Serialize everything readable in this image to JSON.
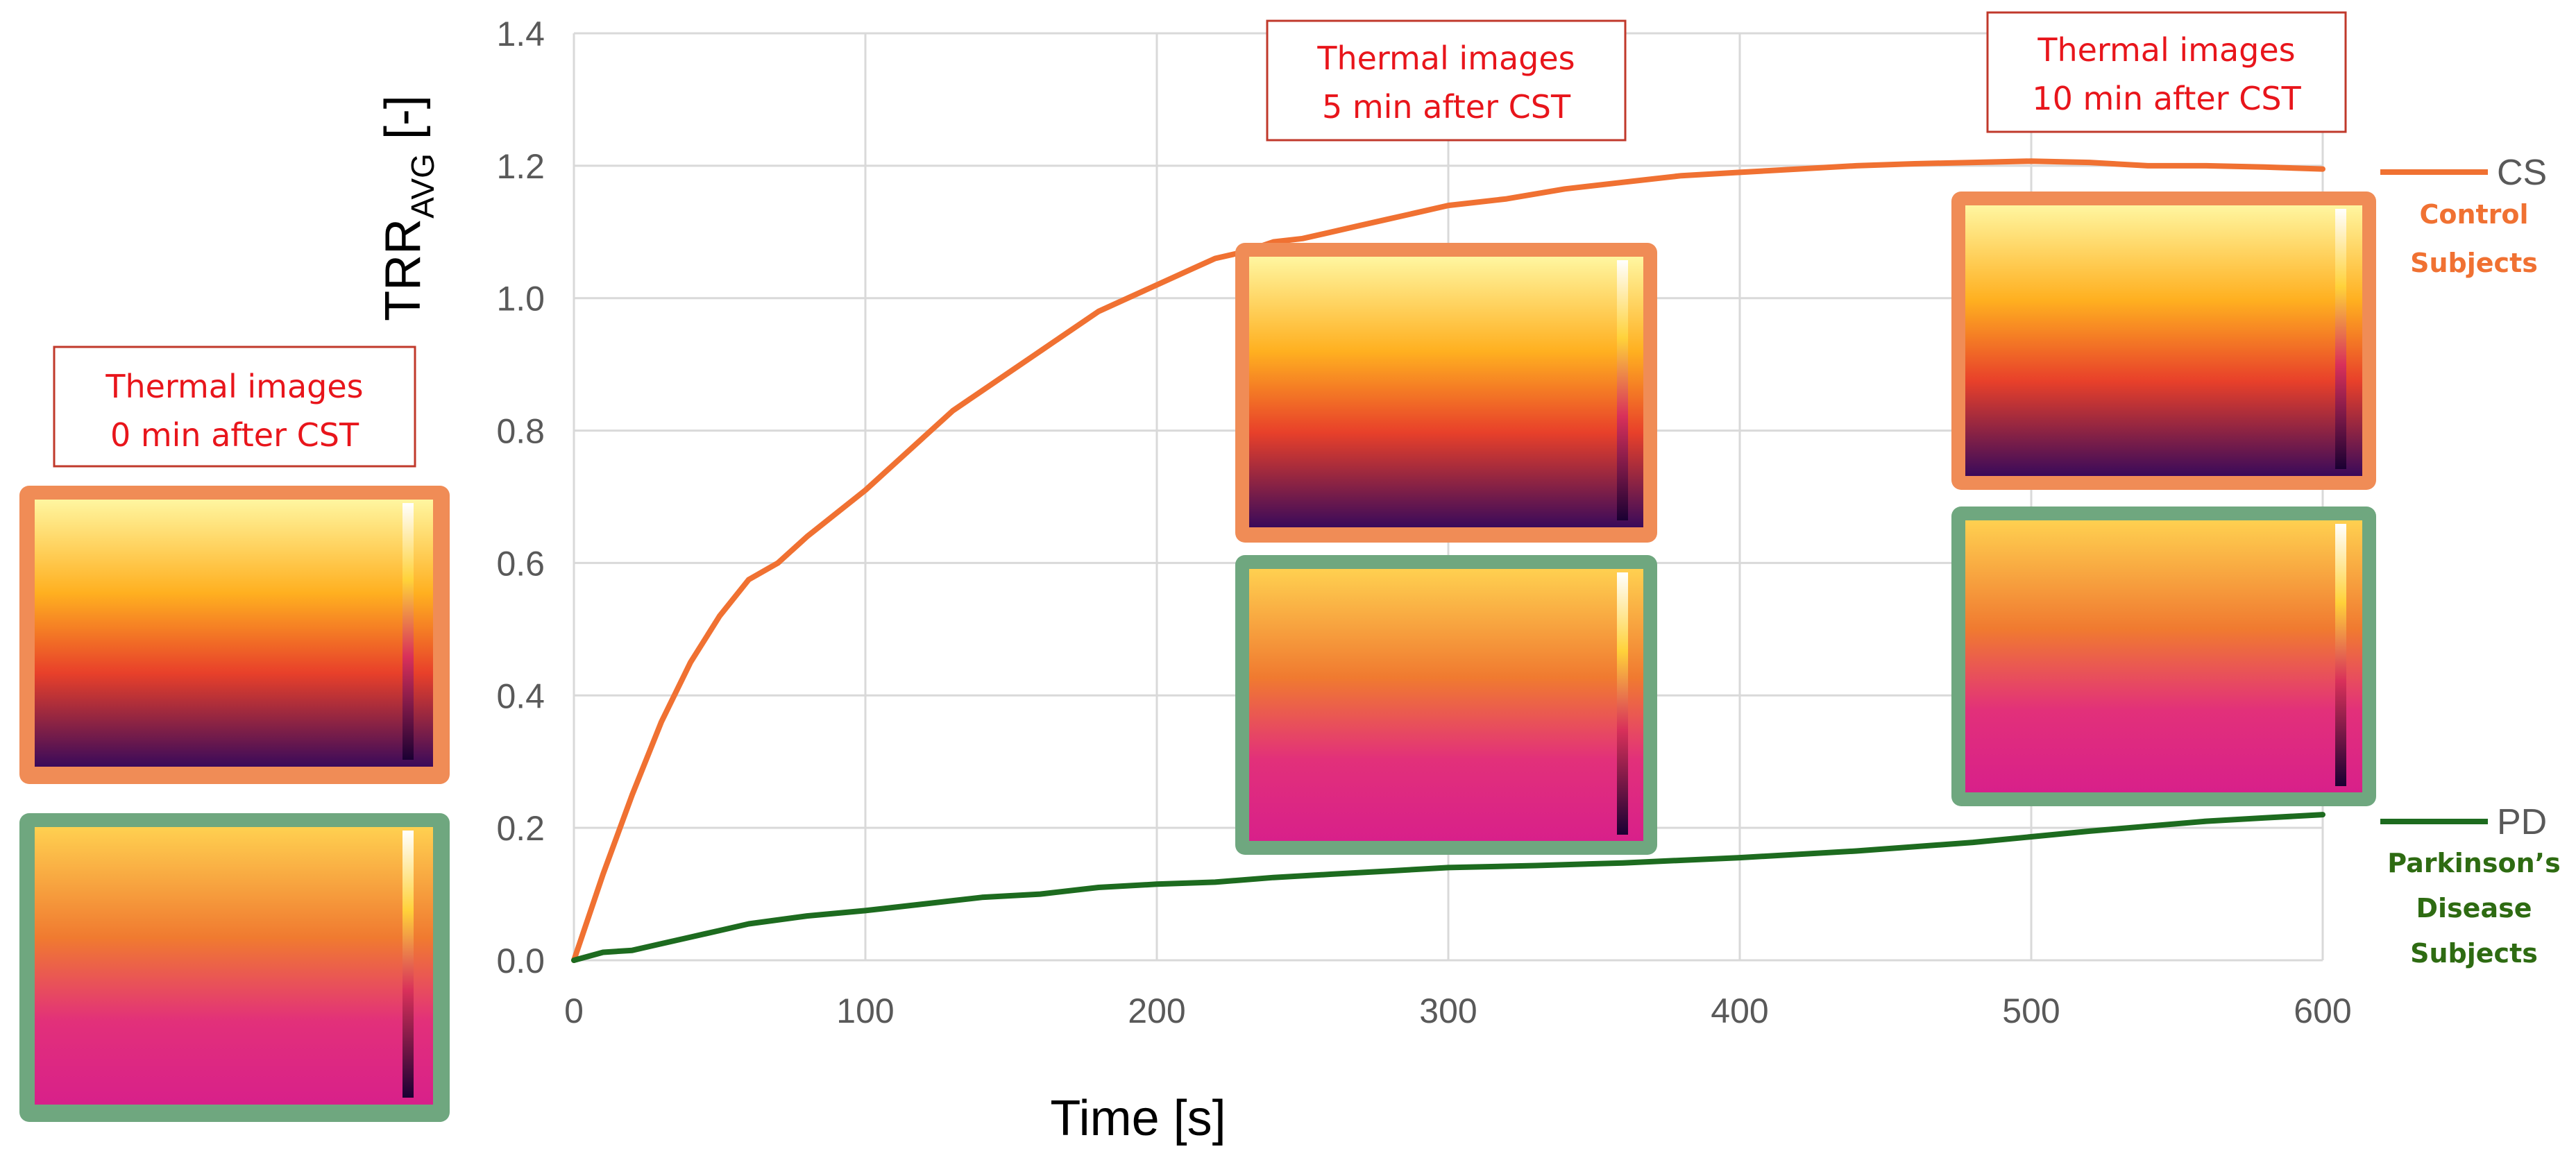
{
  "chart_data": {
    "type": "line",
    "xlabel": "Time [s]",
    "ylabel": "TRR",
    "ylabel_subscript": "AVG",
    "ylabel_unit": "[-]",
    "xlim": [
      0,
      600
    ],
    "ylim": [
      0,
      1.4
    ],
    "x_ticks": [
      "0",
      "100",
      "200",
      "300",
      "400",
      "500",
      "600"
    ],
    "y_ticks": [
      "0.0",
      "0.2",
      "0.4",
      "0.6",
      "0.8",
      "1.0",
      "1.2",
      "1.4"
    ],
    "grid": true,
    "series": [
      {
        "name": "CS",
        "full_name": "Control Subjects",
        "color": "#f07132",
        "points": [
          [
            0,
            0
          ],
          [
            10,
            0.13
          ],
          [
            20,
            0.25
          ],
          [
            30,
            0.36
          ],
          [
            40,
            0.45
          ],
          [
            50,
            0.52
          ],
          [
            60,
            0.575
          ],
          [
            70,
            0.6
          ],
          [
            80,
            0.64
          ],
          [
            90,
            0.675
          ],
          [
            100,
            0.71
          ],
          [
            110,
            0.75
          ],
          [
            120,
            0.79
          ],
          [
            130,
            0.83
          ],
          [
            140,
            0.86
          ],
          [
            150,
            0.89
          ],
          [
            160,
            0.92
          ],
          [
            170,
            0.95
          ],
          [
            180,
            0.98
          ],
          [
            190,
            1.0
          ],
          [
            200,
            1.02
          ],
          [
            210,
            1.04
          ],
          [
            220,
            1.06
          ],
          [
            230,
            1.07
          ],
          [
            240,
            1.085
          ],
          [
            250,
            1.09
          ],
          [
            260,
            1.1
          ],
          [
            270,
            1.11
          ],
          [
            280,
            1.12
          ],
          [
            290,
            1.13
          ],
          [
            300,
            1.14
          ],
          [
            320,
            1.15
          ],
          [
            340,
            1.165
          ],
          [
            360,
            1.175
          ],
          [
            380,
            1.185
          ],
          [
            400,
            1.19
          ],
          [
            420,
            1.195
          ],
          [
            440,
            1.2
          ],
          [
            460,
            1.203
          ],
          [
            480,
            1.205
          ],
          [
            500,
            1.207
          ],
          [
            520,
            1.205
          ],
          [
            540,
            1.2
          ],
          [
            560,
            1.2
          ],
          [
            580,
            1.198
          ],
          [
            600,
            1.195
          ]
        ]
      },
      {
        "name": "PD",
        "full_name": "Parkinson’s Disease Subjects",
        "color": "#1d6b1f",
        "points": [
          [
            0,
            0
          ],
          [
            10,
            0.012
          ],
          [
            20,
            0.015
          ],
          [
            30,
            0.025
          ],
          [
            40,
            0.035
          ],
          [
            50,
            0.045
          ],
          [
            60,
            0.055
          ],
          [
            80,
            0.067
          ],
          [
            100,
            0.075
          ],
          [
            120,
            0.085
          ],
          [
            140,
            0.095
          ],
          [
            160,
            0.1
          ],
          [
            180,
            0.11
          ],
          [
            200,
            0.115
          ],
          [
            220,
            0.118
          ],
          [
            240,
            0.125
          ],
          [
            260,
            0.13
          ],
          [
            280,
            0.135
          ],
          [
            300,
            0.14
          ],
          [
            330,
            0.143
          ],
          [
            360,
            0.147
          ],
          [
            400,
            0.155
          ],
          [
            440,
            0.165
          ],
          [
            480,
            0.178
          ],
          [
            520,
            0.195
          ],
          [
            560,
            0.21
          ],
          [
            580,
            0.215
          ],
          [
            600,
            0.22
          ]
        ]
      }
    ],
    "annotations": [
      {
        "lines": [
          "Thermal images",
          "0 min after CST"
        ],
        "t": 0
      },
      {
        "lines": [
          "Thermal images",
          "5 min after CST"
        ],
        "t": 300
      },
      {
        "lines": [
          "Thermal images",
          "10 min after CST"
        ],
        "t": 600
      }
    ]
  },
  "colors": {
    "cs_frame": "#f08c56",
    "pd_frame": "#6fa77f",
    "callout_text": "#e8151b",
    "callout_border": "#c0392b",
    "grid": "#d9d9d9",
    "tick_text": "#595959",
    "cs_label": "#f07132",
    "pd_label": "#2e6b12"
  }
}
